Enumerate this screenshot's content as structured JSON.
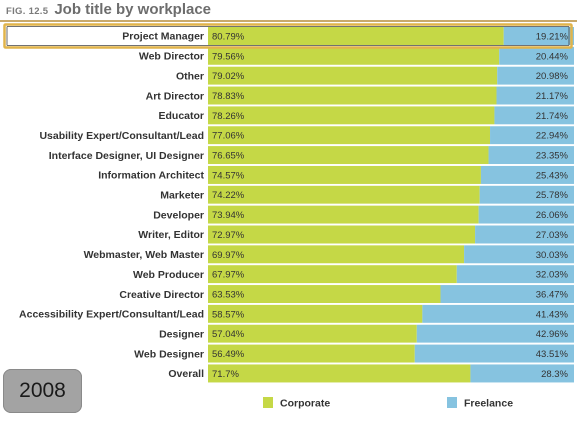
{
  "header": {
    "fig_number": "FIG. 12.5",
    "title": "Job title by workplace"
  },
  "badge": {
    "year": "2008"
  },
  "colors": {
    "corporate": "#c5d846",
    "freelance": "#86c3e0",
    "highlight": "#e1b44a",
    "header_rule": "#c9a96a",
    "gridline": "#ffffff"
  },
  "chart_data": {
    "type": "bar",
    "orientation": "horizontal",
    "stacked": true,
    "percent_stacked": true,
    "title": "Job title by workplace",
    "xlim": [
      0,
      100
    ],
    "legend_position": "bottom",
    "highlighted_category": "Project Manager",
    "categories": [
      "Project Manager",
      "Web Director",
      "Other",
      "Art Director",
      "Educator",
      "Usability Expert/Consultant/Lead",
      "Interface Designer, UI Designer",
      "Information Architect",
      "Marketer",
      "Developer",
      "Writer, Editor",
      "Webmaster, Web Master",
      "Web Producer",
      "Creative Director",
      "Accessibility Expert/Consultant/Lead",
      "Designer",
      "Web Designer",
      "Overall"
    ],
    "series": [
      {
        "name": "Corporate",
        "values": [
          80.79,
          79.56,
          79.02,
          78.83,
          78.26,
          77.06,
          76.65,
          74.57,
          74.22,
          73.94,
          72.97,
          69.97,
          67.97,
          63.53,
          58.57,
          57.04,
          56.49,
          71.7
        ],
        "labels": [
          "80.79%",
          "79.56%",
          "79.02%",
          "78.83%",
          "78.26%",
          "77.06%",
          "76.65%",
          "74.57%",
          "74.22%",
          "73.94%",
          "72.97%",
          "69.97%",
          "67.97%",
          "63.53%",
          "58.57%",
          "57.04%",
          "56.49%",
          "71.7%"
        ]
      },
      {
        "name": "Freelance",
        "values": [
          19.21,
          20.44,
          20.98,
          21.17,
          21.74,
          22.94,
          23.35,
          25.43,
          25.78,
          26.06,
          27.03,
          30.03,
          32.03,
          36.47,
          41.43,
          42.96,
          43.51,
          28.3
        ],
        "labels": [
          "19.21%",
          "20.44%",
          "20.98%",
          "21.17%",
          "21.74%",
          "22.94%",
          "23.35%",
          "25.43%",
          "25.78%",
          "26.06%",
          "27.03%",
          "30.03%",
          "32.03%",
          "36.47%",
          "41.43%",
          "42.96%",
          "43.51%",
          "28.3%"
        ]
      }
    ]
  }
}
